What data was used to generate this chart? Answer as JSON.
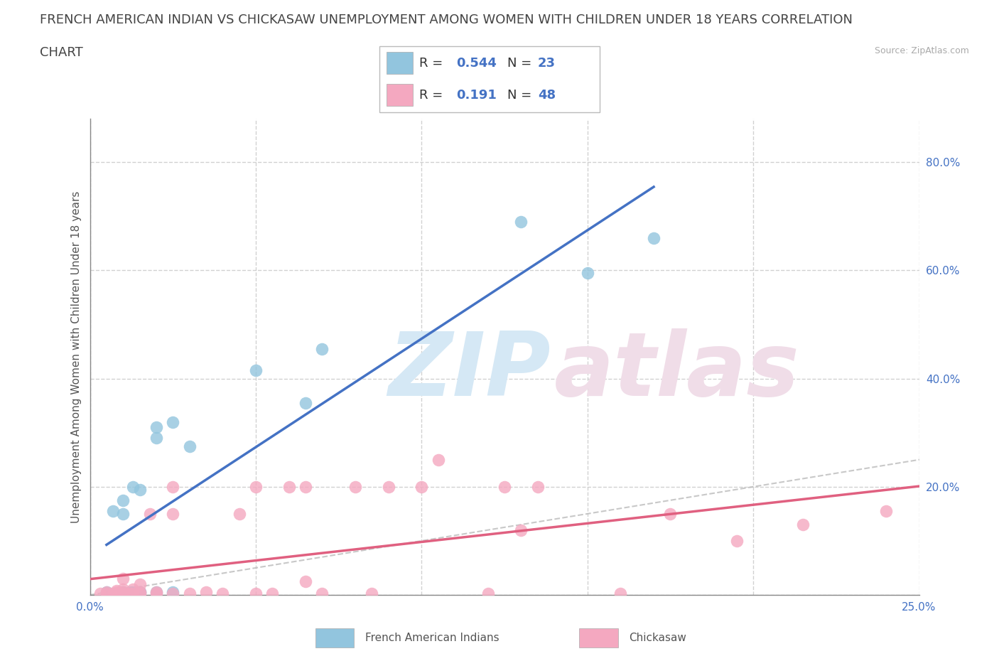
{
  "title_line1": "FRENCH AMERICAN INDIAN VS CHICKASAW UNEMPLOYMENT AMONG WOMEN WITH CHILDREN UNDER 18 YEARS CORRELATION",
  "title_line2": "CHART",
  "source": "Source: ZipAtlas.com",
  "ylabel": "Unemployment Among Women with Children Under 18 years",
  "xlim": [
    0.0,
    0.25
  ],
  "ylim": [
    0.0,
    0.88
  ],
  "xticks": [
    0.0,
    0.05,
    0.1,
    0.15,
    0.2,
    0.25
  ],
  "yticks": [
    0.0,
    0.2,
    0.4,
    0.6,
    0.8
  ],
  "xticklabels": [
    "0.0%",
    "",
    "",
    "",
    "",
    "25.0%"
  ],
  "yticklabels_right": [
    "",
    "20.0%",
    "40.0%",
    "60.0%",
    "80.0%"
  ],
  "blue_color": "#92c5de",
  "pink_color": "#f4a8c0",
  "blue_line_color": "#4472c4",
  "pink_line_color": "#e06080",
  "legend_R_blue": "0.544",
  "legend_N_blue": "23",
  "legend_R_pink": "0.191",
  "legend_N_pink": "48",
  "blue_scatter_x": [
    0.005,
    0.007,
    0.01,
    0.01,
    0.01,
    0.012,
    0.013,
    0.013,
    0.015,
    0.015,
    0.02,
    0.02,
    0.02,
    0.025,
    0.03,
    0.05,
    0.065,
    0.07,
    0.13,
    0.15,
    0.17,
    0.025,
    0.015
  ],
  "blue_scatter_y": [
    0.005,
    0.155,
    0.005,
    0.15,
    0.175,
    0.005,
    0.005,
    0.2,
    0.005,
    0.195,
    0.005,
    0.29,
    0.31,
    0.32,
    0.275,
    0.415,
    0.355,
    0.455,
    0.69,
    0.595,
    0.66,
    0.005,
    0.005
  ],
  "pink_scatter_x": [
    0.003,
    0.005,
    0.005,
    0.007,
    0.008,
    0.008,
    0.008,
    0.01,
    0.01,
    0.01,
    0.01,
    0.012,
    0.013,
    0.013,
    0.015,
    0.015,
    0.015,
    0.018,
    0.02,
    0.02,
    0.025,
    0.025,
    0.025,
    0.03,
    0.035,
    0.04,
    0.045,
    0.05,
    0.05,
    0.055,
    0.06,
    0.065,
    0.065,
    0.07,
    0.08,
    0.085,
    0.09,
    0.1,
    0.105,
    0.12,
    0.125,
    0.13,
    0.135,
    0.16,
    0.175,
    0.195,
    0.215,
    0.24
  ],
  "pink_scatter_y": [
    0.003,
    0.003,
    0.005,
    0.003,
    0.003,
    0.005,
    0.008,
    0.003,
    0.005,
    0.01,
    0.03,
    0.003,
    0.003,
    0.01,
    0.003,
    0.005,
    0.02,
    0.15,
    0.003,
    0.005,
    0.003,
    0.15,
    0.2,
    0.003,
    0.005,
    0.003,
    0.15,
    0.003,
    0.2,
    0.003,
    0.2,
    0.025,
    0.2,
    0.003,
    0.2,
    0.003,
    0.2,
    0.2,
    0.25,
    0.003,
    0.2,
    0.12,
    0.2,
    0.003,
    0.15,
    0.1,
    0.13,
    0.155
  ],
  "grid_color": "#cccccc",
  "background_color": "#ffffff",
  "title_fontsize": 13,
  "axis_label_fontsize": 11,
  "tick_fontsize": 11,
  "tick_color": "#4472c4",
  "watermark_zip_color": "#d5e8f5",
  "watermark_atlas_color": "#f0dde8"
}
